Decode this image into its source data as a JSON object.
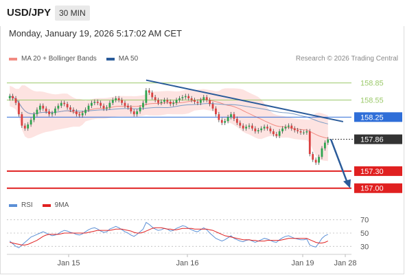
{
  "header": {
    "symbol": "USD/JPY",
    "timeframe": "30 MIN",
    "datetime": "Monday, January 19, 2026 5:17:02 AM CET",
    "copyright": "Research © 2026 Trading Central"
  },
  "legend": {
    "main": [
      {
        "label": "MA 20 + Bollinger Bands",
        "color": "#f28b82"
      },
      {
        "label": "MA 50",
        "color": "#2a5b9a"
      }
    ],
    "rsi": [
      {
        "label": "RSI",
        "color": "#5b8fd6"
      },
      {
        "label": "9MA",
        "color": "#e02020"
      }
    ]
  },
  "chart_data": [
    {
      "type": "candlestick",
      "x_ticks": [
        "Jan 15",
        "Jan 16",
        "Jan 19",
        "Jan 28"
      ],
      "ylim": [
        156.9,
        159.1
      ],
      "levels": [
        {
          "label": "158.85",
          "value": 158.85,
          "kind": "resistance",
          "color": "#9bc96a"
        },
        {
          "label": "158.55",
          "value": 158.55,
          "kind": "resistance",
          "color": "#9bc96a"
        },
        {
          "label": "158.25",
          "value": 158.25,
          "kind": "pivot",
          "color": "#2f6ed8"
        },
        {
          "label": "157.86",
          "value": 157.86,
          "kind": "last-price",
          "color": "#333333"
        },
        {
          "label": "157.30",
          "value": 157.3,
          "kind": "support",
          "color": "#e02020"
        },
        {
          "label": "157.00",
          "value": 157.0,
          "kind": "support",
          "color": "#e02020"
        }
      ],
      "closes": [
        158.62,
        158.58,
        158.5,
        158.3,
        158.1,
        158.05,
        158.12,
        158.2,
        158.3,
        158.38,
        158.45,
        158.4,
        158.35,
        158.3,
        158.32,
        158.4,
        158.45,
        158.5,
        158.48,
        158.42,
        158.38,
        158.35,
        158.3,
        158.28,
        158.32,
        158.38,
        158.45,
        158.5,
        158.52,
        158.5,
        158.45,
        158.4,
        158.42,
        158.5,
        158.55,
        158.58,
        158.55,
        158.5,
        158.45,
        158.42,
        158.35,
        158.3,
        158.35,
        158.42,
        158.5,
        158.72,
        158.68,
        158.6,
        158.55,
        158.5,
        158.52,
        158.55,
        158.52,
        158.48,
        158.5,
        158.55,
        158.58,
        158.6,
        158.62,
        158.58,
        158.55,
        158.52,
        158.5,
        158.55,
        158.6,
        158.55,
        158.48,
        158.4,
        158.3,
        158.2,
        158.15,
        158.18,
        158.25,
        158.3,
        158.22,
        158.15,
        158.1,
        158.05,
        158.08,
        158.1,
        158.05,
        158.0,
        158.02,
        158.05,
        158.08,
        158.05,
        158.0,
        157.95,
        157.92,
        158.0,
        158.05,
        158.08,
        158.1,
        158.05,
        158.02,
        158.0,
        157.98,
        157.98,
        158.0,
        157.6,
        157.5,
        157.45,
        157.55,
        157.7,
        157.8,
        157.86
      ],
      "trendline": {
        "start": {
          "index": 45,
          "value": 158.9
        },
        "end": {
          "index": 110,
          "value": 158.17
        }
      },
      "forecast": {
        "start_value": 157.86,
        "end_value": 157.0
      }
    },
    {
      "type": "line",
      "name": "RSI",
      "y_ticks": [
        "70",
        "50",
        "30"
      ],
      "ylim": [
        20,
        80
      ],
      "rsi": [
        38,
        34,
        30,
        28,
        32,
        36,
        40,
        44,
        46,
        48,
        50,
        52,
        50,
        48,
        46,
        47,
        49,
        52,
        54,
        53,
        51,
        50,
        48,
        47,
        49,
        52,
        55,
        57,
        58,
        56,
        53,
        51,
        52,
        56,
        58,
        60,
        58,
        55,
        52,
        50,
        47,
        45,
        48,
        52,
        56,
        66,
        63,
        59,
        56,
        54,
        55,
        57,
        56,
        53,
        54,
        57,
        59,
        61,
        60,
        57,
        55,
        53,
        52,
        55,
        58,
        55,
        50,
        46,
        42,
        40,
        38,
        40,
        43,
        46,
        42,
        40,
        38,
        37,
        39,
        40,
        38,
        36,
        38,
        40,
        42,
        41,
        39,
        37,
        36,
        40,
        43,
        45,
        46,
        44,
        42,
        41,
        40,
        40,
        41,
        32,
        30,
        29,
        35,
        42,
        46,
        48
      ],
      "ma9": [
        36,
        35,
        34,
        33,
        32,
        32,
        33,
        35,
        37,
        39,
        42,
        45,
        47,
        48,
        48,
        48,
        48,
        49,
        50,
        50,
        50,
        50,
        50,
        50,
        50,
        50,
        51,
        52,
        53,
        54,
        54,
        54,
        54,
        54,
        55,
        56,
        56,
        56,
        55,
        54,
        53,
        51,
        50,
        50,
        51,
        53,
        55,
        57,
        58,
        58,
        58,
        57,
        56,
        56,
        55,
        55,
        56,
        57,
        57,
        57,
        57,
        56,
        56,
        56,
        56,
        56,
        55,
        54,
        52,
        50,
        48,
        46,
        45,
        44,
        43,
        42,
        41,
        40,
        40,
        40,
        39,
        39,
        38,
        38,
        38,
        39,
        39,
        39,
        39,
        39,
        40,
        41,
        42,
        42,
        42,
        42,
        42,
        42,
        42,
        40,
        38,
        36,
        35,
        35,
        36,
        38
      ]
    }
  ]
}
